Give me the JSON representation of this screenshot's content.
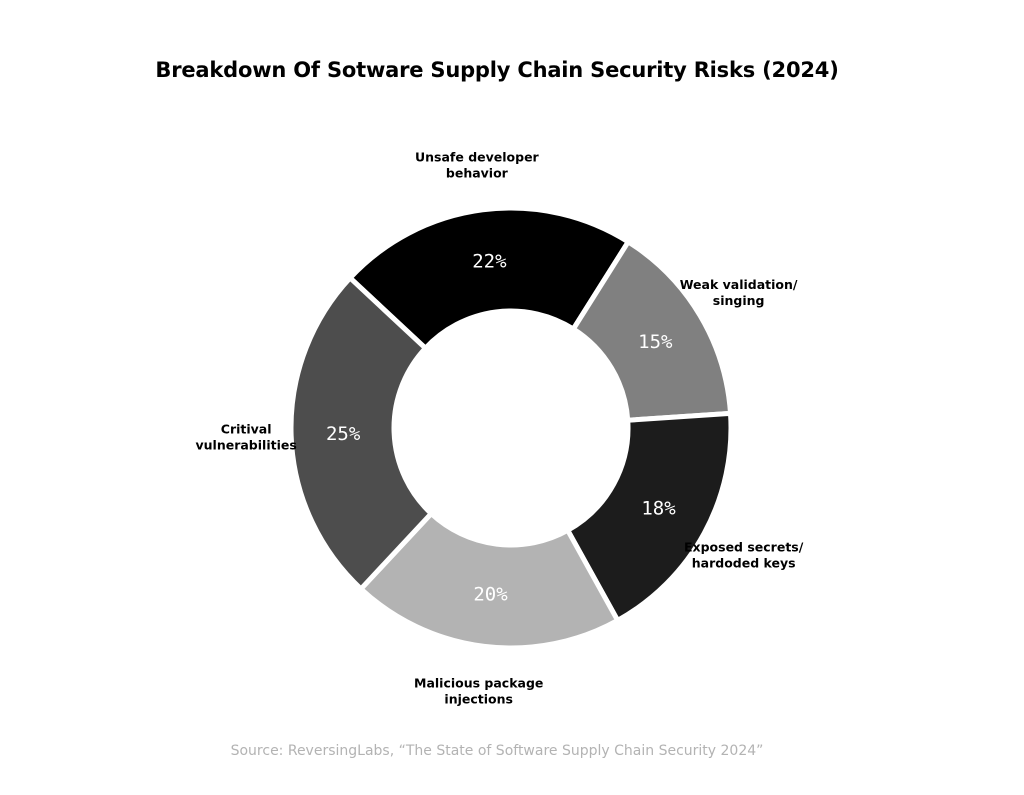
{
  "chart_data": {
    "type": "pie",
    "donut": true,
    "title": "Breakdown Of Sotware Supply Chain Security Risks (2024)",
    "source": "Source: ReversingLabs, “The State of Software Supply Chain Security 2024”",
    "slices": [
      {
        "label": [
          "Unsafe developer",
          "behavior"
        ],
        "value": 22,
        "value_label": "22%",
        "color": "#000000",
        "text_color": "#ffffff"
      },
      {
        "label": [
          "Weak validation/",
          "singing"
        ],
        "value": 15,
        "value_label": "15%",
        "color": "#808080",
        "text_color": "#ffffff"
      },
      {
        "label": [
          "Exposed secrets/",
          "hardoded keys"
        ],
        "value": 18,
        "value_label": "18%",
        "color": "#1c1c1c",
        "text_color": "#ffffff"
      },
      {
        "label": [
          "Malicious package",
          "injections"
        ],
        "value": 20,
        "value_label": "20%",
        "color": "#b3b3b3",
        "text_color": "#ffffff"
      },
      {
        "label": [
          "Critival",
          "vulnerabilities"
        ],
        "value": 25,
        "value_label": "25%",
        "color": "#4d4d4d",
        "text_color": "#ffffff"
      }
    ]
  }
}
